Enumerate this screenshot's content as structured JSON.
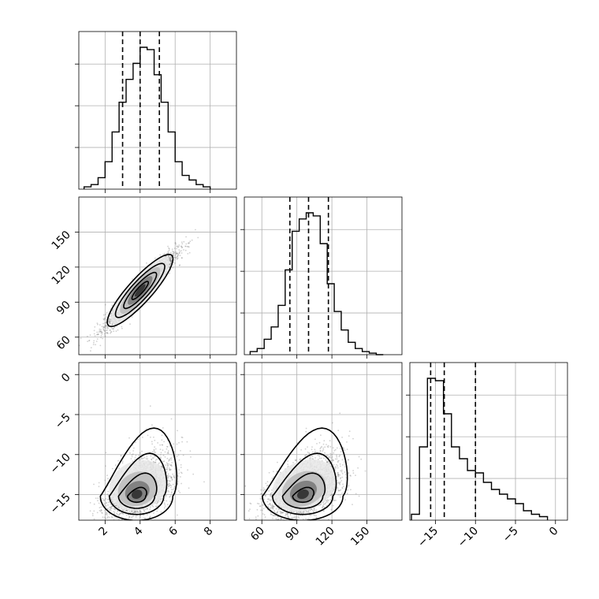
{
  "chart_data": {
    "type": "corner",
    "grid": true,
    "parameters": [
      {
        "index": 0,
        "range": [
          0.5,
          9.5
        ],
        "ticks": [
          2,
          4,
          6,
          8
        ],
        "tick_labels": [
          "2",
          "4",
          "6",
          "8"
        ],
        "quantiles": [
          3.0,
          4.0,
          5.1
        ]
      },
      {
        "index": 1,
        "range": [
          45,
          180
        ],
        "ticks": [
          60,
          90,
          120,
          150
        ],
        "tick_labels": [
          "60",
          "90",
          "120",
          "150"
        ],
        "quantiles": [
          84,
          100,
          117
        ]
      },
      {
        "index": 2,
        "range": [
          -18.2,
          1.5
        ],
        "ticks": [
          -15,
          -10,
          -5,
          0
        ],
        "tick_labels": [
          "−15",
          "−10",
          "−5",
          "0"
        ],
        "quantiles": [
          -15.6,
          -13.9,
          -10.0
        ]
      }
    ],
    "histograms": [
      {
        "param": 0,
        "bins": [
          0.8,
          1.2,
          1.6,
          2.0,
          2.4,
          2.8,
          3.2,
          3.6,
          4.0,
          4.4,
          4.8,
          5.2,
          5.6,
          6.0,
          6.4,
          6.8,
          7.2,
          7.6,
          8.0
        ],
        "counts": [
          1,
          2,
          5,
          12,
          25,
          38,
          48,
          55,
          62,
          61,
          50,
          38,
          25,
          12,
          6,
          4,
          2,
          1
        ]
      },
      {
        "param": 1,
        "bins": [
          50,
          56,
          62,
          68,
          74,
          80,
          86,
          92,
          98,
          104,
          110,
          116,
          122,
          128,
          134,
          140,
          146,
          152,
          158,
          164
        ],
        "counts": [
          2,
          4,
          10,
          18,
          32,
          55,
          80,
          88,
          92,
          90,
          72,
          46,
          28,
          16,
          8,
          4,
          2,
          1,
          0
        ]
      },
      {
        "param": 2,
        "bins": [
          -18,
          -17,
          -16,
          -15,
          -14,
          -13,
          -12,
          -11,
          -10,
          -9,
          -8,
          -7,
          -6,
          -5,
          -4,
          -3,
          -2,
          -1
        ],
        "counts": [
          5,
          62,
          120,
          118,
          90,
          62,
          52,
          42,
          40,
          32,
          26,
          22,
          18,
          14,
          8,
          5,
          3
        ]
      }
    ],
    "pair_panels": [
      {
        "x_param": 0,
        "y_param": 1,
        "center": [
          4.0,
          100
        ],
        "sigma": [
          1.0,
          16
        ],
        "rho": 0.95,
        "points": 2500
      },
      {
        "x_param": 0,
        "y_param": 2,
        "center": [
          3.8,
          -15.2
        ],
        "sigma": [
          0.9,
          1.6
        ],
        "rho": 0.45,
        "skew": "upper-right tail",
        "points": 2500
      },
      {
        "x_param": 1,
        "y_param": 2,
        "center": [
          95,
          -15.2
        ],
        "sigma": [
          15,
          1.6
        ],
        "rho": 0.45,
        "skew": "upper-right tail",
        "points": 2500
      }
    ],
    "contour_levels": [
      0.5,
      1.0,
      1.5,
      2.0
    ]
  }
}
